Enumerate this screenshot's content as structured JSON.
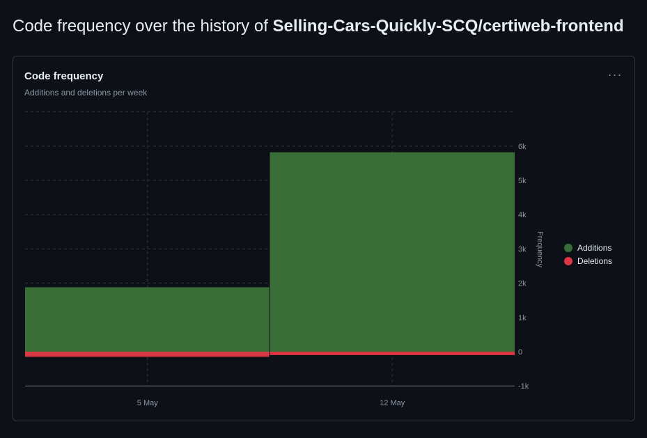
{
  "page": {
    "title_prefix": "Code frequency over the history of ",
    "repo_name": "Selling-Cars-Quickly-SCQ/certiweb-frontend"
  },
  "card": {
    "title": "Code frequency",
    "subtitle": "Additions and deletions per week",
    "menu_icon": "kebab-horizontal-icon",
    "menu_label": "···"
  },
  "chart_data": {
    "type": "area",
    "title": "Code frequency",
    "subtitle": "Additions and deletions per week",
    "xlabel": "",
    "ylabel": "Frequency",
    "x_ticks": [
      "5 May",
      "12 May"
    ],
    "y_ticks": [
      "-1k",
      "0",
      "1k",
      "2k",
      "3k",
      "4k",
      "5k",
      "6k"
    ],
    "ylim": [
      -1000,
      7000
    ],
    "grid": true,
    "legend_position": "right",
    "weeks": [
      "5 May",
      "12 May"
    ],
    "series": [
      {
        "name": "Additions",
        "color": "#3a6e38",
        "values": [
          1880,
          5820
        ]
      },
      {
        "name": "Deletions",
        "color": "#da3643",
        "values": [
          -150,
          -100
        ]
      }
    ]
  },
  "colors": {
    "grid": "#30363d",
    "axis_text": "#8d96a0",
    "additions": "#3a6e38",
    "deletions": "#da3643"
  }
}
